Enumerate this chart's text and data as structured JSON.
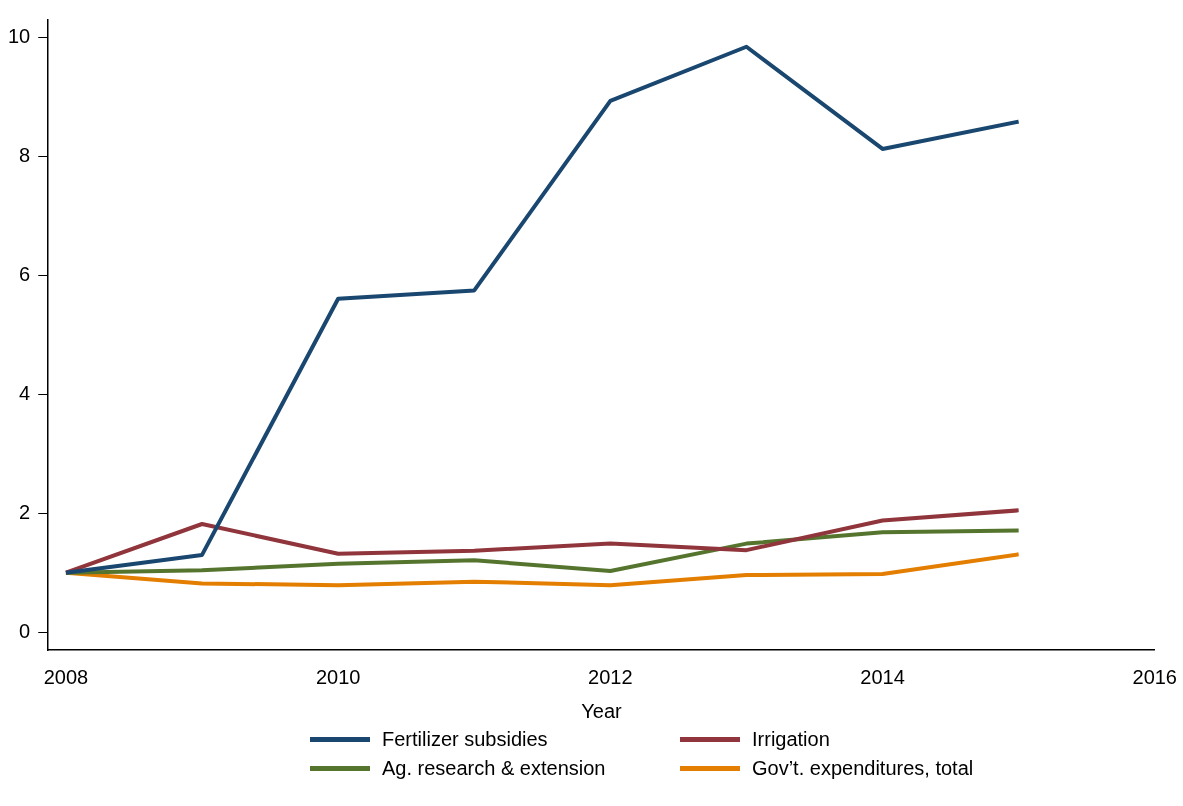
{
  "chart_data": {
    "type": "line",
    "xlabel": "Year",
    "x": [
      2008,
      2009,
      2010,
      2011,
      2012,
      2013,
      2014,
      2015
    ],
    "series": [
      {
        "name": "Fertilizer subsidies",
        "color": "#1a476f",
        "values": [
          1.0,
          1.3,
          5.61,
          5.75,
          8.94,
          9.85,
          8.13,
          8.59
        ]
      },
      {
        "name": "Irrigation",
        "color": "#90353b",
        "values": [
          1.0,
          1.82,
          1.32,
          1.37,
          1.49,
          1.38,
          1.88,
          2.05
        ]
      },
      {
        "name": "Ag. research & extension",
        "color": "#55752f",
        "values": [
          1.0,
          1.04,
          1.15,
          1.21,
          1.03,
          1.49,
          1.68,
          1.71
        ]
      },
      {
        "name": "Gov’t. expenditures, total",
        "color": "#e37e00",
        "values": [
          1.0,
          0.82,
          0.79,
          0.85,
          0.79,
          0.96,
          0.98,
          1.31
        ]
      }
    ],
    "xlim": [
      2007.87,
      2016
    ],
    "xticks": [
      2008,
      2010,
      2012,
      2014,
      2016
    ],
    "ylim": [
      -0.3,
      10.3
    ],
    "yticks": [
      0,
      2,
      4,
      6,
      8,
      10
    ],
    "grid": false,
    "legend": "bottom",
    "marker": "none",
    "line_style": "solid"
  }
}
